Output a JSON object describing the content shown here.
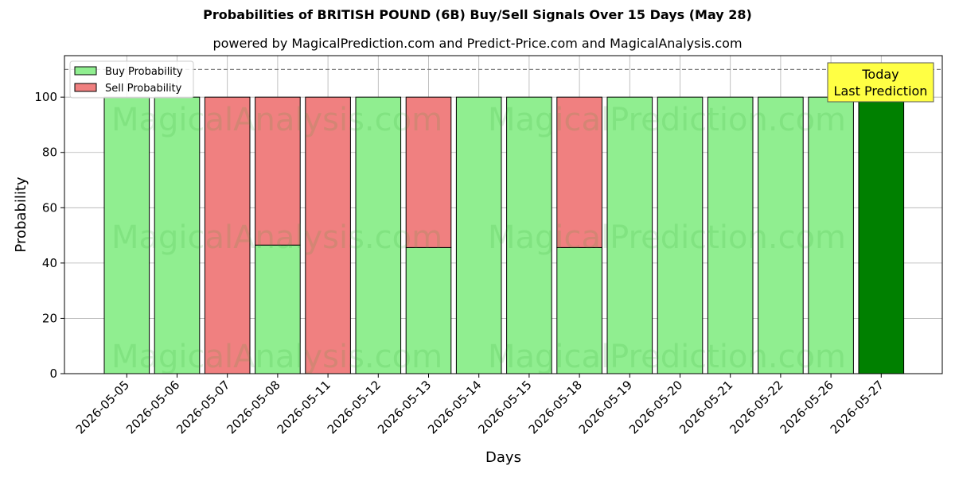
{
  "chart_data": {
    "type": "bar",
    "title": "Probabilities of BRITISH POUND (6B) Buy/Sell Signals Over 15 Days (May 28)",
    "subtitle": "powered by MagicalPrediction.com and Predict-Price.com and MagicalAnalysis.com",
    "xlabel": "Days",
    "ylabel": "Probability",
    "ylim": [
      0,
      115
    ],
    "yticks": [
      0,
      20,
      40,
      60,
      80,
      100
    ],
    "reference_line": 110,
    "grid": true,
    "legend_position": "top-left",
    "categories": [
      "2026-05-05",
      "2026-05-06",
      "2026-05-07",
      "2026-05-08",
      "2026-05-11",
      "2026-05-12",
      "2026-05-13",
      "2026-05-14",
      "2026-05-15",
      "2026-05-18",
      "2026-05-19",
      "2026-05-20",
      "2026-05-21",
      "2026-05-22",
      "2026-05-26",
      "2026-05-27"
    ],
    "series": [
      {
        "name": "Buy Probability",
        "color": "#90ee90",
        "values": [
          100,
          100,
          0,
          46.5,
          0,
          100,
          45.6,
          100,
          100,
          45.6,
          100,
          100,
          100,
          100,
          100,
          100
        ]
      },
      {
        "name": "Sell Probability",
        "color": "#f08080",
        "values": [
          0,
          0,
          100,
          53.5,
          100,
          0,
          54.4,
          0,
          0,
          54.4,
          0,
          0,
          0,
          0,
          0,
          0
        ]
      }
    ],
    "highlight": {
      "index": 15,
      "color": "#008000"
    },
    "annotation": {
      "line1": "Today",
      "line2": "Last Prediction",
      "color": "#ffff44"
    },
    "watermarks": [
      "MagicalAnalysis.com",
      "MagicalPrediction.com"
    ]
  }
}
